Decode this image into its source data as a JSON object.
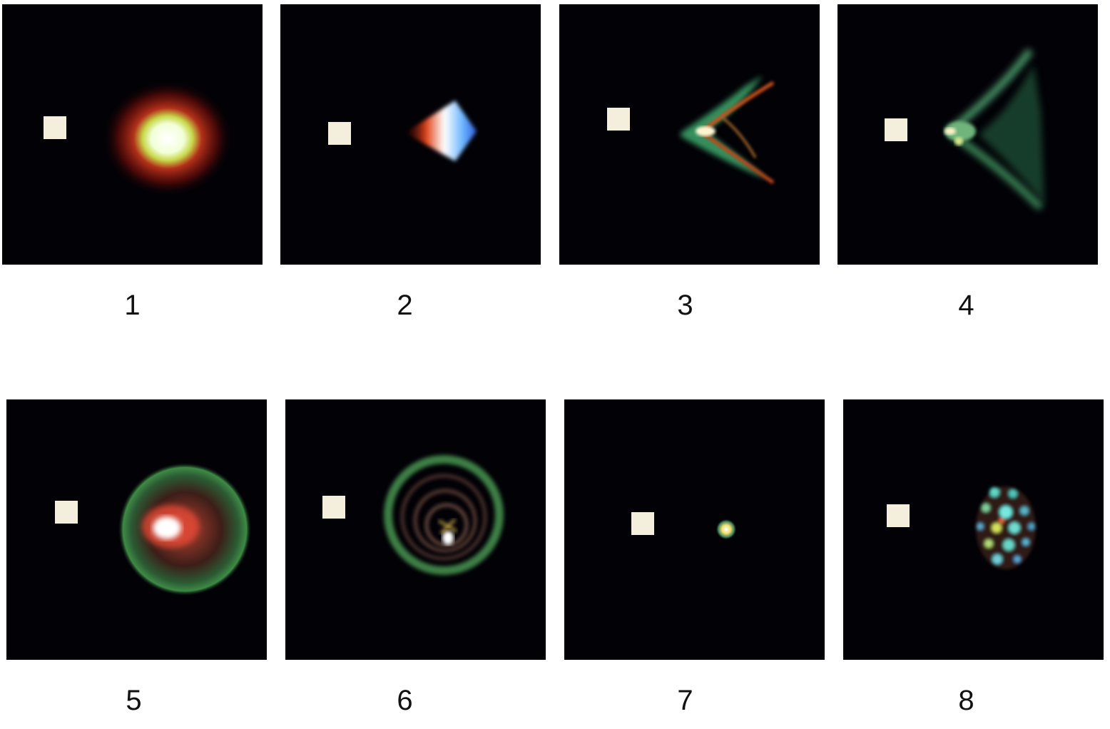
{
  "figure": {
    "panels": [
      {
        "label": "1"
      },
      {
        "label": "2"
      },
      {
        "label": "3"
      },
      {
        "label": "4"
      },
      {
        "label": "5"
      },
      {
        "label": "6"
      },
      {
        "label": "7"
      },
      {
        "label": "8"
      }
    ]
  },
  "colors": {
    "panel_background": "#020106",
    "marker": "#f3efdc",
    "caption_text": "#111111"
  }
}
